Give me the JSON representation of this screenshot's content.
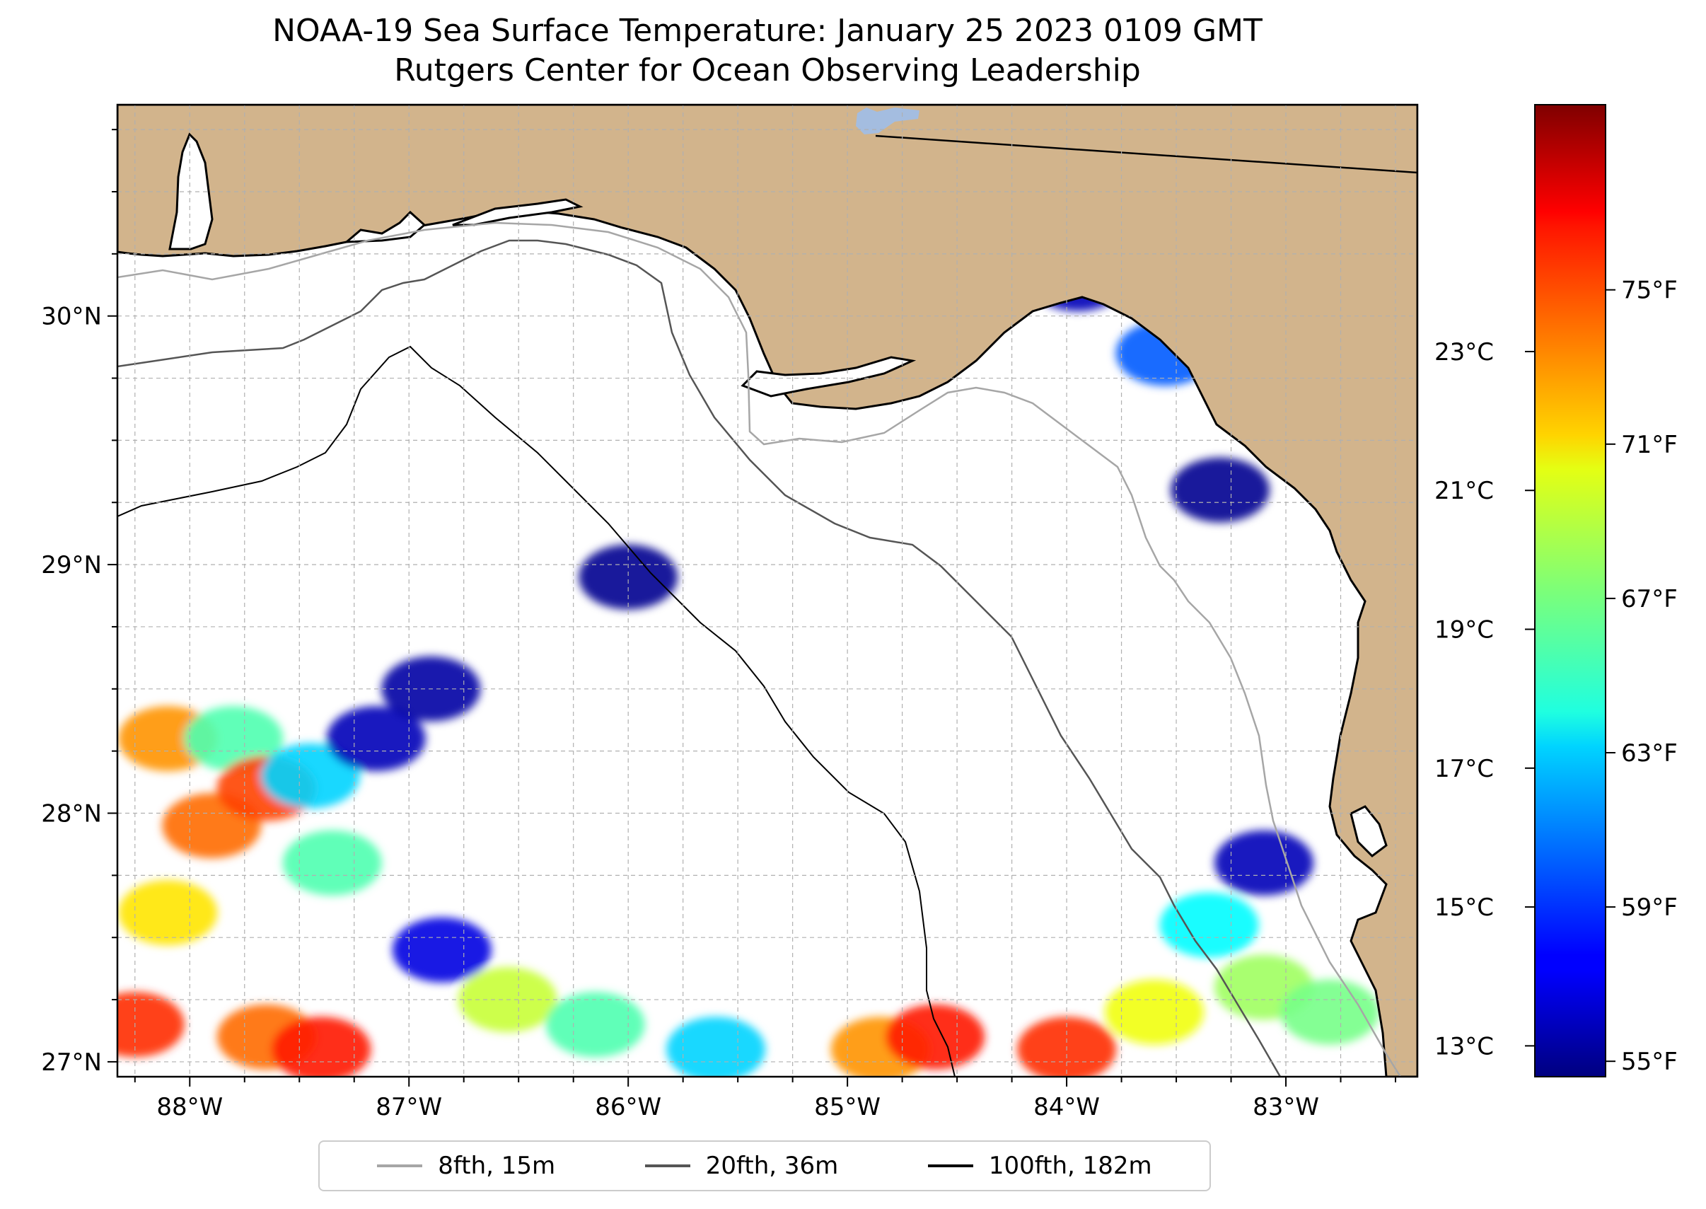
{
  "title": {
    "line1": "NOAA-19 Sea Surface Temperature: January 25 2023 0109 GMT",
    "line2": "Rutgers Center for Ocean Observing Leadership"
  },
  "map": {
    "lon_range": [
      -88.33,
      -82.4
    ],
    "lat_range": [
      26.94,
      30.85
    ],
    "lon_ticks": [
      {
        "value": -88,
        "label": "88°W"
      },
      {
        "value": -87,
        "label": "87°W"
      },
      {
        "value": -86,
        "label": "86°W"
      },
      {
        "value": -85,
        "label": "85°W"
      },
      {
        "value": -84,
        "label": "84°W"
      },
      {
        "value": -83,
        "label": "83°W"
      }
    ],
    "lat_ticks": [
      {
        "value": 27,
        "label": "27°N"
      },
      {
        "value": 28,
        "label": "28°N"
      },
      {
        "value": 29,
        "label": "29°N"
      },
      {
        "value": 30,
        "label": "30°N"
      }
    ],
    "colors": {
      "land": "#d2b48c",
      "ocean": "#ffffff",
      "gridline": "#b0b0b0",
      "lake": "#a4bde0"
    }
  },
  "colorbar": {
    "cmap": "jet",
    "min_f": 54.6,
    "max_f": 79.8,
    "fahrenheit_ticks": [
      {
        "value": 55,
        "label": "55°F"
      },
      {
        "value": 59,
        "label": "59°F"
      },
      {
        "value": 63,
        "label": "63°F"
      },
      {
        "value": 67,
        "label": "67°F"
      },
      {
        "value": 71,
        "label": "71°F"
      },
      {
        "value": 75,
        "label": "75°F"
      }
    ],
    "celsius_ticks": [
      {
        "value": 13,
        "label": "13°C"
      },
      {
        "value": 15,
        "label": "15°C"
      },
      {
        "value": 17,
        "label": "17°C"
      },
      {
        "value": 19,
        "label": "19°C"
      },
      {
        "value": 21,
        "label": "21°C"
      },
      {
        "value": 23,
        "label": "23°C"
      }
    ]
  },
  "legend": {
    "items": [
      {
        "label": "8fth, 15m",
        "color": "#a6a6a6"
      },
      {
        "label": "20fth, 36m",
        "color": "#555555"
      },
      {
        "label": "100fth, 182m",
        "color": "#000000"
      }
    ]
  },
  "sst_patches": [
    {
      "lon": -88.25,
      "lat": 27.15,
      "temp_f": 75.5
    },
    {
      "lon": -88.1,
      "lat": 27.6,
      "temp_f": 71
    },
    {
      "lon": -88.1,
      "lat": 28.3,
      "temp_f": 73
    },
    {
      "lon": -87.9,
      "lat": 27.95,
      "temp_f": 74
    },
    {
      "lon": -87.8,
      "lat": 28.3,
      "temp_f": 66
    },
    {
      "lon": -87.65,
      "lat": 28.1,
      "temp_f": 75
    },
    {
      "lon": -87.45,
      "lat": 28.15,
      "temp_f": 63
    },
    {
      "lon": -87.35,
      "lat": 27.8,
      "temp_f": 66
    },
    {
      "lon": -87.15,
      "lat": 28.3,
      "temp_f": 56
    },
    {
      "lon": -87.65,
      "lat": 27.1,
      "temp_f": 74
    },
    {
      "lon": -87.4,
      "lat": 27.05,
      "temp_f": 76
    },
    {
      "lon": -86.85,
      "lat": 27.45,
      "temp_f": 57
    },
    {
      "lon": -86.55,
      "lat": 27.25,
      "temp_f": 69
    },
    {
      "lon": -86.15,
      "lat": 27.15,
      "temp_f": 66
    },
    {
      "lon": -85.6,
      "lat": 27.05,
      "temp_f": 63
    },
    {
      "lon": -84.85,
      "lat": 27.05,
      "temp_f": 73
    },
    {
      "lon": -84.6,
      "lat": 27.1,
      "temp_f": 76
    },
    {
      "lon": -84.0,
      "lat": 27.05,
      "temp_f": 75.5
    },
    {
      "lon": -83.6,
      "lat": 27.2,
      "temp_f": 70
    },
    {
      "lon": -83.35,
      "lat": 27.55,
      "temp_f": 64
    },
    {
      "lon": -83.1,
      "lat": 27.3,
      "temp_f": 68
    },
    {
      "lon": -82.8,
      "lat": 27.2,
      "temp_f": 67
    },
    {
      "lon": -86.0,
      "lat": 28.95,
      "temp_f": 55
    },
    {
      "lon": -86.9,
      "lat": 28.5,
      "temp_f": 55.5
    },
    {
      "lon": -83.95,
      "lat": 30.15,
      "temp_f": 56
    },
    {
      "lon": -83.3,
      "lat": 29.3,
      "temp_f": 55
    },
    {
      "lon": -83.55,
      "lat": 29.85,
      "temp_f": 60
    },
    {
      "lon": -83.1,
      "lat": 27.8,
      "temp_f": 56
    }
  ]
}
